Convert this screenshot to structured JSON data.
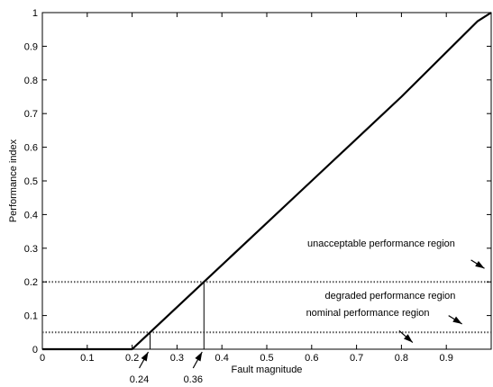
{
  "chart_data": {
    "type": "line",
    "xlabel": "Fault magnitude",
    "ylabel": "Performance index",
    "xlim": [
      0,
      1
    ],
    "ylim": [
      0,
      1
    ],
    "x_ticks": [
      0,
      0.1,
      0.2,
      0.3,
      0.4,
      0.5,
      0.6,
      0.7,
      0.8,
      0.9
    ],
    "x_tick_labels": [
      "0",
      "0.1",
      "0.2",
      "0.3",
      "0.4",
      "0.5",
      "0.6",
      "0.7",
      "0.8",
      "0.9"
    ],
    "y_ticks": [
      0,
      0.1,
      0.2,
      0.3,
      0.4,
      0.5,
      0.6,
      0.7,
      0.8,
      0.9,
      1
    ],
    "y_tick_labels": [
      "0",
      "0.1",
      "0.2",
      "0.3",
      "0.4",
      "0.5",
      "0.6",
      "0.7",
      "0.8",
      "0.9",
      "1"
    ],
    "grid": false,
    "series": [
      {
        "x": [
          0.0,
          0.2,
          0.24,
          0.36,
          0.6,
          0.8,
          0.97,
          1.0
        ],
        "y": [
          0.0,
          0.0,
          0.05,
          0.2,
          0.5,
          0.75,
          0.975,
          1.0
        ]
      }
    ],
    "thresholds": [
      {
        "y": 0.2,
        "style": "dotted"
      },
      {
        "y": 0.05,
        "style": "dotted"
      }
    ],
    "markers": [
      {
        "x": 0.24,
        "y": 0.05,
        "label": "0.24"
      },
      {
        "x": 0.36,
        "y": 0.2,
        "label": "0.36"
      }
    ],
    "annotations": [
      {
        "text": "unacceptable performance region",
        "x": 0.755,
        "y": 0.315,
        "arrow_from": [
          0.955,
          0.265
        ],
        "arrow_to": [
          0.985,
          0.24
        ]
      },
      {
        "text": "degraded performance region",
        "x": 0.775,
        "y": 0.16,
        "arrow_from": [
          0.905,
          0.1
        ],
        "arrow_to": [
          0.935,
          0.075
        ]
      },
      {
        "text": "nominal performance region",
        "x": 0.725,
        "y": 0.11,
        "arrow_from": [
          0.795,
          0.055
        ],
        "arrow_to": [
          0.825,
          0.02
        ]
      }
    ]
  }
}
